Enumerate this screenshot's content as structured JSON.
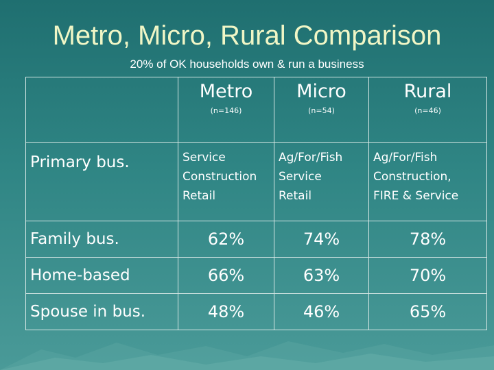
{
  "title": "Metro, Micro, Rural Comparison",
  "subtitle": "20% of OK households own & run a business",
  "columns": [
    {
      "name": "Metro",
      "n": "(n=146)"
    },
    {
      "name": "Micro",
      "n": "(n=54)"
    },
    {
      "name": "Rural",
      "n": "(n=46)"
    }
  ],
  "primary": {
    "label": "Primary bus.",
    "metro": [
      "Service",
      "Construction",
      "Retail"
    ],
    "micro": [
      "Ag/For/Fish",
      "Service",
      "Retail"
    ],
    "rural": [
      "Ag/For/Fish",
      "Construction,",
      "FIRE & Service"
    ]
  },
  "rows": [
    {
      "label": "Family bus.",
      "metro": "62%",
      "micro": "74%",
      "rural": "78%"
    },
    {
      "label": "Home-based",
      "metro": "66%",
      "micro": "63%",
      "rural": "70%"
    },
    {
      "label": "Spouse in bus.",
      "metro": "48%",
      "micro": "46%",
      "rural": "65%"
    }
  ],
  "colors": {
    "title": "#f0f6c6",
    "background_top": "#1f6f70",
    "background_bottom": "#4a9a98",
    "grid": "#d8e8e6"
  }
}
